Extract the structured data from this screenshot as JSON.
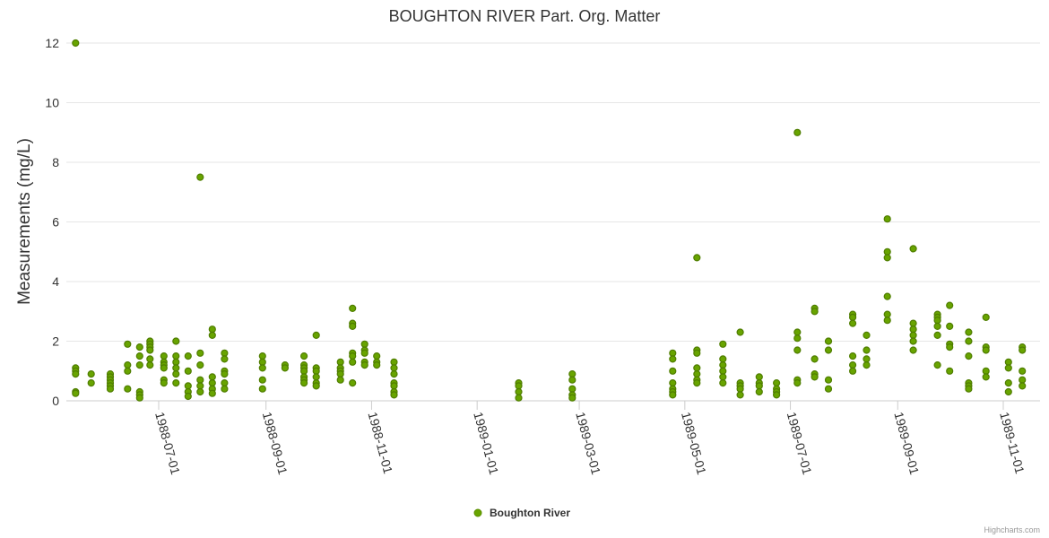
{
  "chart_data": {
    "type": "scatter",
    "title": "BOUGHTON RIVER Part. Org. Matter",
    "xlabel": "",
    "ylabel": "Measurements (mg/L)",
    "ylim": [
      0,
      12
    ],
    "yticks": [
      0,
      2,
      4,
      6,
      8,
      10,
      12
    ],
    "xticks": [
      "1988-07-01",
      "1988-09-01",
      "1988-11-01",
      "1989-01-01",
      "1989-03-01",
      "1989-05-01",
      "1989-07-01",
      "1989-09-01",
      "1989-11-01"
    ],
    "series": [
      {
        "name": "Boughton River",
        "color": "#68a400",
        "points": [
          [
            "1988-05-14",
            12.0
          ],
          [
            "1988-05-14",
            1.1
          ],
          [
            "1988-05-14",
            1.0
          ],
          [
            "1988-05-14",
            0.9
          ],
          [
            "1988-05-14",
            0.3
          ],
          [
            "1988-05-14",
            0.25
          ],
          [
            "1988-05-23",
            0.9
          ],
          [
            "1988-05-23",
            0.6
          ],
          [
            "1988-06-03",
            0.9
          ],
          [
            "1988-06-03",
            0.8
          ],
          [
            "1988-06-03",
            0.7
          ],
          [
            "1988-06-03",
            0.6
          ],
          [
            "1988-06-03",
            0.5
          ],
          [
            "1988-06-03",
            0.4
          ],
          [
            "1988-06-13",
            1.9
          ],
          [
            "1988-06-13",
            1.2
          ],
          [
            "1988-06-13",
            1.0
          ],
          [
            "1988-06-13",
            0.4
          ],
          [
            "1988-06-20",
            1.8
          ],
          [
            "1988-06-20",
            1.5
          ],
          [
            "1988-06-20",
            1.2
          ],
          [
            "1988-06-20",
            0.3
          ],
          [
            "1988-06-20",
            0.2
          ],
          [
            "1988-06-20",
            0.1
          ],
          [
            "1988-06-26",
            2.0
          ],
          [
            "1988-06-26",
            1.9
          ],
          [
            "1988-06-26",
            1.8
          ],
          [
            "1988-06-26",
            1.7
          ],
          [
            "1988-06-26",
            1.4
          ],
          [
            "1988-06-26",
            1.2
          ],
          [
            "1988-07-04",
            1.5
          ],
          [
            "1988-07-04",
            1.3
          ],
          [
            "1988-07-04",
            1.2
          ],
          [
            "1988-07-04",
            1.1
          ],
          [
            "1988-07-04",
            0.7
          ],
          [
            "1988-07-04",
            0.6
          ],
          [
            "1988-07-11",
            2.0
          ],
          [
            "1988-07-11",
            1.5
          ],
          [
            "1988-07-11",
            1.3
          ],
          [
            "1988-07-11",
            1.1
          ],
          [
            "1988-07-11",
            0.9
          ],
          [
            "1988-07-11",
            0.6
          ],
          [
            "1988-07-18",
            1.5
          ],
          [
            "1988-07-18",
            1.0
          ],
          [
            "1988-07-18",
            0.5
          ],
          [
            "1988-07-18",
            0.3
          ],
          [
            "1988-07-18",
            0.15
          ],
          [
            "1988-07-25",
            7.5
          ],
          [
            "1988-07-25",
            1.6
          ],
          [
            "1988-07-25",
            1.2
          ],
          [
            "1988-07-25",
            0.7
          ],
          [
            "1988-07-25",
            0.5
          ],
          [
            "1988-07-25",
            0.3
          ],
          [
            "1988-08-01",
            2.4
          ],
          [
            "1988-08-01",
            2.2
          ],
          [
            "1988-08-01",
            0.8
          ],
          [
            "1988-08-01",
            0.6
          ],
          [
            "1988-08-01",
            0.4
          ],
          [
            "1988-08-01",
            0.25
          ],
          [
            "1988-08-08",
            1.6
          ],
          [
            "1988-08-08",
            1.4
          ],
          [
            "1988-08-08",
            1.0
          ],
          [
            "1988-08-08",
            0.9
          ],
          [
            "1988-08-08",
            0.6
          ],
          [
            "1988-08-08",
            0.4
          ],
          [
            "1988-08-30",
            1.5
          ],
          [
            "1988-08-30",
            1.3
          ],
          [
            "1988-08-30",
            1.1
          ],
          [
            "1988-08-30",
            0.7
          ],
          [
            "1988-08-30",
            0.4
          ],
          [
            "1988-09-12",
            1.2
          ],
          [
            "1988-09-12",
            1.1
          ],
          [
            "1988-09-23",
            1.5
          ],
          [
            "1988-09-23",
            1.2
          ],
          [
            "1988-09-23",
            1.1
          ],
          [
            "1988-09-23",
            1.0
          ],
          [
            "1988-09-23",
            0.8
          ],
          [
            "1988-09-23",
            0.7
          ],
          [
            "1988-09-23",
            0.6
          ],
          [
            "1988-09-30",
            2.2
          ],
          [
            "1988-09-30",
            1.1
          ],
          [
            "1988-09-30",
            1.0
          ],
          [
            "1988-09-30",
            0.8
          ],
          [
            "1988-09-30",
            0.6
          ],
          [
            "1988-09-30",
            0.5
          ],
          [
            "1988-10-14",
            1.3
          ],
          [
            "1988-10-14",
            1.1
          ],
          [
            "1988-10-14",
            1.0
          ],
          [
            "1988-10-14",
            0.9
          ],
          [
            "1988-10-14",
            0.7
          ],
          [
            "1988-10-21",
            3.1
          ],
          [
            "1988-10-21",
            2.6
          ],
          [
            "1988-10-21",
            2.5
          ],
          [
            "1988-10-21",
            1.6
          ],
          [
            "1988-10-21",
            1.5
          ],
          [
            "1988-10-21",
            1.3
          ],
          [
            "1988-10-21",
            0.6
          ],
          [
            "1988-10-28",
            1.9
          ],
          [
            "1988-10-28",
            1.7
          ],
          [
            "1988-10-28",
            1.6
          ],
          [
            "1988-10-28",
            1.3
          ],
          [
            "1988-10-28",
            1.2
          ],
          [
            "1988-11-04",
            1.5
          ],
          [
            "1988-11-04",
            1.3
          ],
          [
            "1988-11-04",
            1.2
          ],
          [
            "1988-11-14",
            1.3
          ],
          [
            "1988-11-14",
            1.1
          ],
          [
            "1988-11-14",
            0.9
          ],
          [
            "1988-11-14",
            0.6
          ],
          [
            "1988-11-14",
            0.5
          ],
          [
            "1988-11-14",
            0.3
          ],
          [
            "1988-11-14",
            0.2
          ],
          [
            "1989-01-25",
            0.6
          ],
          [
            "1989-01-25",
            0.5
          ],
          [
            "1989-01-25",
            0.3
          ],
          [
            "1989-01-25",
            0.1
          ],
          [
            "1989-02-25",
            0.9
          ],
          [
            "1989-02-25",
            0.7
          ],
          [
            "1989-02-25",
            0.4
          ],
          [
            "1989-02-25",
            0.2
          ],
          [
            "1989-02-25",
            0.1
          ],
          [
            "1989-04-24",
            1.6
          ],
          [
            "1989-04-24",
            1.4
          ],
          [
            "1989-04-24",
            1.0
          ],
          [
            "1989-04-24",
            0.6
          ],
          [
            "1989-04-24",
            0.4
          ],
          [
            "1989-04-24",
            0.3
          ],
          [
            "1989-04-24",
            0.2
          ],
          [
            "1989-05-08",
            4.8
          ],
          [
            "1989-05-08",
            1.7
          ],
          [
            "1989-05-08",
            1.6
          ],
          [
            "1989-05-08",
            1.1
          ],
          [
            "1989-05-08",
            0.9
          ],
          [
            "1989-05-08",
            0.7
          ],
          [
            "1989-05-08",
            0.6
          ],
          [
            "1989-05-23",
            1.9
          ],
          [
            "1989-05-23",
            1.4
          ],
          [
            "1989-05-23",
            1.2
          ],
          [
            "1989-05-23",
            1.0
          ],
          [
            "1989-05-23",
            0.8
          ],
          [
            "1989-05-23",
            0.6
          ],
          [
            "1989-06-02",
            2.3
          ],
          [
            "1989-06-02",
            0.6
          ],
          [
            "1989-06-02",
            0.5
          ],
          [
            "1989-06-02",
            0.4
          ],
          [
            "1989-06-02",
            0.2
          ],
          [
            "1989-06-13",
            0.8
          ],
          [
            "1989-06-13",
            0.6
          ],
          [
            "1989-06-13",
            0.5
          ],
          [
            "1989-06-13",
            0.3
          ],
          [
            "1989-06-23",
            0.6
          ],
          [
            "1989-06-23",
            0.4
          ],
          [
            "1989-06-23",
            0.3
          ],
          [
            "1989-06-23",
            0.2
          ],
          [
            "1989-07-05",
            9.0
          ],
          [
            "1989-07-05",
            2.3
          ],
          [
            "1989-07-05",
            2.1
          ],
          [
            "1989-07-05",
            1.7
          ],
          [
            "1989-07-05",
            0.7
          ],
          [
            "1989-07-05",
            0.6
          ],
          [
            "1989-07-15",
            3.1
          ],
          [
            "1989-07-15",
            3.0
          ],
          [
            "1989-07-15",
            1.4
          ],
          [
            "1989-07-15",
            0.9
          ],
          [
            "1989-07-15",
            0.8
          ],
          [
            "1989-07-23",
            2.0
          ],
          [
            "1989-07-23",
            1.7
          ],
          [
            "1989-07-23",
            0.7
          ],
          [
            "1989-07-23",
            0.4
          ],
          [
            "1989-08-06",
            2.9
          ],
          [
            "1989-08-06",
            2.8
          ],
          [
            "1989-08-06",
            2.6
          ],
          [
            "1989-08-06",
            1.5
          ],
          [
            "1989-08-06",
            1.2
          ],
          [
            "1989-08-06",
            1.0
          ],
          [
            "1989-08-14",
            2.2
          ],
          [
            "1989-08-14",
            1.7
          ],
          [
            "1989-08-14",
            1.4
          ],
          [
            "1989-08-14",
            1.2
          ],
          [
            "1989-08-26",
            6.1
          ],
          [
            "1989-08-26",
            5.0
          ],
          [
            "1989-08-26",
            4.8
          ],
          [
            "1989-08-26",
            3.5
          ],
          [
            "1989-08-26",
            2.9
          ],
          [
            "1989-08-26",
            2.7
          ],
          [
            "1989-09-10",
            5.1
          ],
          [
            "1989-09-10",
            2.6
          ],
          [
            "1989-09-10",
            2.4
          ],
          [
            "1989-09-10",
            2.2
          ],
          [
            "1989-09-10",
            2.0
          ],
          [
            "1989-09-10",
            1.7
          ],
          [
            "1989-09-24",
            2.9
          ],
          [
            "1989-09-24",
            2.8
          ],
          [
            "1989-09-24",
            2.7
          ],
          [
            "1989-09-24",
            2.5
          ],
          [
            "1989-09-24",
            2.2
          ],
          [
            "1989-09-24",
            1.2
          ],
          [
            "1989-10-01",
            3.2
          ],
          [
            "1989-10-01",
            2.5
          ],
          [
            "1989-10-01",
            1.9
          ],
          [
            "1989-10-01",
            1.8
          ],
          [
            "1989-10-01",
            1.0
          ],
          [
            "1989-10-12",
            2.3
          ],
          [
            "1989-10-12",
            2.0
          ],
          [
            "1989-10-12",
            1.5
          ],
          [
            "1989-10-12",
            0.6
          ],
          [
            "1989-10-12",
            0.5
          ],
          [
            "1989-10-12",
            0.4
          ],
          [
            "1989-10-22",
            2.8
          ],
          [
            "1989-10-22",
            1.8
          ],
          [
            "1989-10-22",
            1.7
          ],
          [
            "1989-10-22",
            1.0
          ],
          [
            "1989-10-22",
            0.8
          ],
          [
            "1989-11-04",
            1.3
          ],
          [
            "1989-11-04",
            1.1
          ],
          [
            "1989-11-04",
            0.6
          ],
          [
            "1989-11-04",
            0.3
          ],
          [
            "1989-11-12",
            1.8
          ],
          [
            "1989-11-12",
            1.7
          ],
          [
            "1989-11-12",
            1.0
          ],
          [
            "1989-11-12",
            0.7
          ],
          [
            "1989-11-12",
            0.5
          ]
        ]
      }
    ],
    "legend": {
      "position": "bottom-center",
      "label": "Boughton River"
    }
  },
  "credits": "Highcharts.com"
}
